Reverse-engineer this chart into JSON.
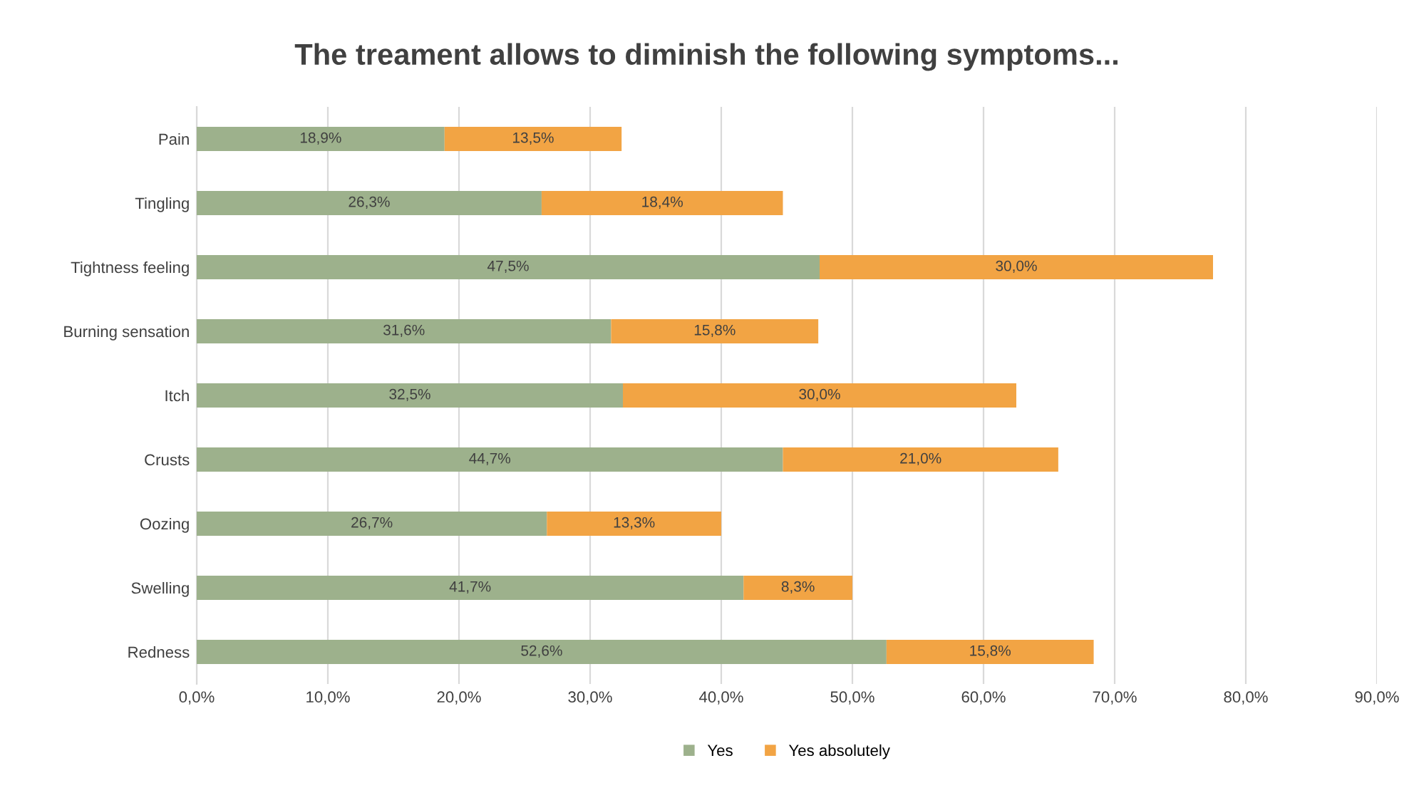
{
  "chart_data": {
    "type": "bar",
    "orientation": "horizontal",
    "stacked": true,
    "title": "The treament allows to diminish the following symptoms...",
    "categories": [
      "Pain",
      "Tingling",
      "Tightness feeling",
      "Burning sensation",
      "Itch",
      "Crusts",
      "Oozing",
      "Swelling",
      "Redness"
    ],
    "series": [
      {
        "name": "Yes",
        "color": "#9db18c",
        "values": [
          18.9,
          26.3,
          47.5,
          31.6,
          32.5,
          44.7,
          26.7,
          41.7,
          52.6
        ],
        "value_labels": [
          "18,9%",
          "26,3%",
          "47,5%",
          "31,6%",
          "32,5%",
          "44,7%",
          "26,7%",
          "41,7%",
          "52,6%"
        ]
      },
      {
        "name": "Yes absolutely",
        "color": "#f2a444",
        "values": [
          13.5,
          18.4,
          30.0,
          15.8,
          30.0,
          21.0,
          13.3,
          8.3,
          15.8
        ],
        "value_labels": [
          "13,5%",
          "18,4%",
          "30,0%",
          "15,8%",
          "30,0%",
          "21,0%",
          "13,3%",
          "8,3%",
          "15,8%"
        ]
      }
    ],
    "xlim": [
      0,
      90
    ],
    "xticks": [
      {
        "value": 0,
        "label": "0,0%"
      },
      {
        "value": 10,
        "label": "10,0%"
      },
      {
        "value": 20,
        "label": "20,0%"
      },
      {
        "value": 30,
        "label": "30,0%"
      },
      {
        "value": 40,
        "label": "40,0%"
      },
      {
        "value": 50,
        "label": "50,0%"
      },
      {
        "value": 60,
        "label": "60,0%"
      },
      {
        "value": 70,
        "label": "70,0%"
      },
      {
        "value": 80,
        "label": "80,0%"
      },
      {
        "value": 90,
        "label": "90,0%"
      }
    ],
    "grid": "x",
    "legend": "bottom"
  }
}
